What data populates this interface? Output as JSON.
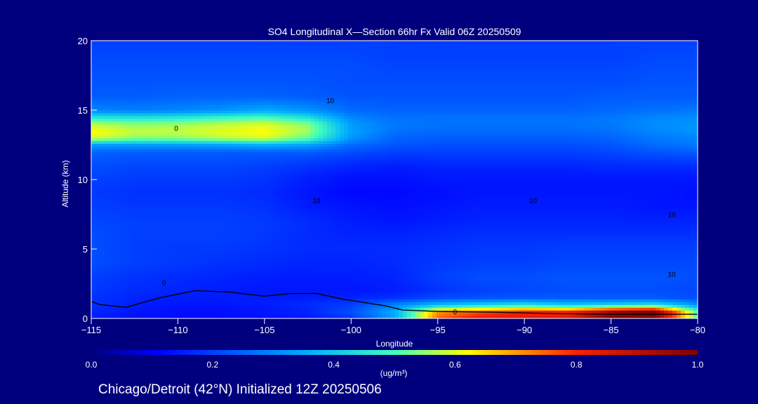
{
  "chart_data": {
    "type": "heatmap",
    "title": "SO4 Longitudinal X—Section 66hr  Fx Valid 06Z 20250509",
    "xlabel": "Longitude",
    "ylabel": "Altitude (km)",
    "xlim": [
      -115,
      -80
    ],
    "ylim": [
      0,
      20
    ],
    "x_ticks": [
      -115,
      -110,
      -105,
      -100,
      -95,
      -90,
      -85,
      -80
    ],
    "x_tick_labels": [
      "−115",
      "−110",
      "−105",
      "−100",
      "−95",
      "−90",
      "−85",
      "−80"
    ],
    "y_ticks": [
      0,
      5,
      10,
      15,
      20
    ],
    "y_tick_labels": [
      "0",
      "5",
      "10",
      "15",
      "20"
    ],
    "colorbar": {
      "label": "(ug/m³)",
      "range": [
        0.0,
        1.0
      ],
      "ticks": [
        0.0,
        0.2,
        0.4,
        0.6,
        0.8,
        1.0
      ],
      "tick_labels": [
        "0.0",
        "0.2",
        "0.4",
        "0.6",
        "0.8",
        "1.0"
      ],
      "colormap": "jet"
    },
    "field": {
      "lon": [
        -115,
        -112.5,
        -110,
        -107.5,
        -105,
        -102.5,
        -100,
        -97.5,
        -95,
        -92.5,
        -90,
        -87.5,
        -85,
        -82.5,
        -80
      ],
      "alt": [
        0,
        0.5,
        1,
        1.5,
        2,
        3,
        4,
        5,
        6,
        7,
        8,
        9,
        10,
        11,
        12,
        12.5,
        13,
        13.5,
        14,
        14.5,
        15,
        16,
        17,
        18,
        19,
        20
      ],
      "values": [
        [
          0.15,
          0.13,
          0.12,
          0.12,
          0.13,
          0.14,
          0.18,
          0.35,
          0.75,
          0.85,
          0.85,
          0.85,
          1.0,
          1.0,
          0.5
        ],
        [
          0.16,
          0.14,
          0.13,
          0.13,
          0.14,
          0.16,
          0.22,
          0.35,
          0.7,
          0.75,
          0.8,
          0.8,
          0.95,
          1.0,
          0.5
        ],
        [
          0.18,
          0.15,
          0.14,
          0.14,
          0.15,
          0.17,
          0.2,
          0.3,
          0.38,
          0.42,
          0.45,
          0.4,
          0.42,
          0.45,
          0.32
        ],
        [
          0.18,
          0.16,
          0.15,
          0.15,
          0.15,
          0.15,
          0.16,
          0.18,
          0.22,
          0.23,
          0.24,
          0.24,
          0.24,
          0.24,
          0.22
        ],
        [
          0.19,
          0.17,
          0.16,
          0.15,
          0.14,
          0.14,
          0.14,
          0.15,
          0.18,
          0.2,
          0.21,
          0.22,
          0.22,
          0.22,
          0.21
        ],
        [
          0.2,
          0.18,
          0.17,
          0.16,
          0.15,
          0.15,
          0.15,
          0.16,
          0.2,
          0.22,
          0.22,
          0.23,
          0.23,
          0.23,
          0.22
        ],
        [
          0.22,
          0.2,
          0.19,
          0.18,
          0.17,
          0.16,
          0.16,
          0.17,
          0.19,
          0.2,
          0.2,
          0.21,
          0.21,
          0.21,
          0.21
        ],
        [
          0.22,
          0.2,
          0.19,
          0.19,
          0.18,
          0.17,
          0.17,
          0.17,
          0.18,
          0.19,
          0.19,
          0.2,
          0.2,
          0.2,
          0.2
        ],
        [
          0.22,
          0.2,
          0.2,
          0.2,
          0.19,
          0.17,
          0.16,
          0.16,
          0.17,
          0.18,
          0.18,
          0.18,
          0.18,
          0.18,
          0.18
        ],
        [
          0.21,
          0.2,
          0.2,
          0.2,
          0.19,
          0.17,
          0.15,
          0.14,
          0.15,
          0.16,
          0.16,
          0.16,
          0.16,
          0.16,
          0.16
        ],
        [
          0.2,
          0.19,
          0.19,
          0.19,
          0.18,
          0.15,
          0.14,
          0.13,
          0.14,
          0.15,
          0.15,
          0.15,
          0.15,
          0.14,
          0.14
        ],
        [
          0.19,
          0.18,
          0.18,
          0.18,
          0.17,
          0.14,
          0.12,
          0.12,
          0.13,
          0.14,
          0.14,
          0.14,
          0.14,
          0.14,
          0.13
        ],
        [
          0.2,
          0.19,
          0.19,
          0.19,
          0.18,
          0.15,
          0.13,
          0.13,
          0.14,
          0.14,
          0.14,
          0.14,
          0.14,
          0.14,
          0.14
        ],
        [
          0.22,
          0.21,
          0.21,
          0.21,
          0.2,
          0.18,
          0.16,
          0.15,
          0.16,
          0.16,
          0.16,
          0.16,
          0.17,
          0.17,
          0.17
        ],
        [
          0.25,
          0.24,
          0.24,
          0.24,
          0.24,
          0.24,
          0.22,
          0.2,
          0.2,
          0.2,
          0.2,
          0.2,
          0.21,
          0.23,
          0.24
        ],
        [
          0.33,
          0.33,
          0.33,
          0.34,
          0.36,
          0.34,
          0.26,
          0.23,
          0.22,
          0.22,
          0.22,
          0.22,
          0.23,
          0.26,
          0.28
        ],
        [
          0.6,
          0.55,
          0.55,
          0.58,
          0.6,
          0.52,
          0.32,
          0.25,
          0.24,
          0.24,
          0.24,
          0.24,
          0.25,
          0.28,
          0.3
        ],
        [
          0.62,
          0.58,
          0.58,
          0.6,
          0.62,
          0.56,
          0.34,
          0.27,
          0.26,
          0.26,
          0.26,
          0.26,
          0.27,
          0.3,
          0.32
        ],
        [
          0.58,
          0.55,
          0.56,
          0.58,
          0.6,
          0.55,
          0.33,
          0.28,
          0.27,
          0.27,
          0.27,
          0.27,
          0.28,
          0.31,
          0.32
        ],
        [
          0.45,
          0.44,
          0.45,
          0.48,
          0.5,
          0.44,
          0.3,
          0.27,
          0.27,
          0.27,
          0.27,
          0.27,
          0.28,
          0.3,
          0.31
        ],
        [
          0.3,
          0.29,
          0.3,
          0.32,
          0.35,
          0.32,
          0.26,
          0.25,
          0.25,
          0.25,
          0.25,
          0.25,
          0.26,
          0.27,
          0.28
        ],
        [
          0.24,
          0.24,
          0.25,
          0.25,
          0.25,
          0.24,
          0.23,
          0.23,
          0.23,
          0.23,
          0.23,
          0.23,
          0.24,
          0.24,
          0.24
        ],
        [
          0.23,
          0.23,
          0.23,
          0.23,
          0.23,
          0.23,
          0.22,
          0.22,
          0.22,
          0.22,
          0.22,
          0.22,
          0.22,
          0.23,
          0.23
        ],
        [
          0.22,
          0.22,
          0.22,
          0.22,
          0.22,
          0.22,
          0.22,
          0.21,
          0.21,
          0.21,
          0.21,
          0.21,
          0.21,
          0.22,
          0.22
        ],
        [
          0.21,
          0.21,
          0.21,
          0.21,
          0.21,
          0.21,
          0.21,
          0.2,
          0.2,
          0.2,
          0.2,
          0.2,
          0.2,
          0.21,
          0.21
        ],
        [
          0.2,
          0.2,
          0.2,
          0.2,
          0.2,
          0.2,
          0.2,
          0.2,
          0.2,
          0.2,
          0.2,
          0.2,
          0.2,
          0.2,
          0.2
        ]
      ]
    },
    "terrain_line": {
      "lon": [
        -115,
        -114.5,
        -113,
        -111,
        -109,
        -107,
        -105,
        -103.5,
        -102,
        -100.5,
        -99,
        -98,
        -97,
        -95,
        -92,
        -90,
        -88,
        -85,
        -82,
        -80
      ],
      "alt": [
        1.2,
        1.0,
        0.8,
        1.5,
        2.0,
        1.9,
        1.6,
        1.8,
        1.8,
        1.4,
        1.1,
        0.9,
        0.6,
        0.5,
        0.45,
        0.4,
        0.35,
        0.3,
        0.3,
        0.3
      ]
    },
    "contour_labels": [
      {
        "text": "10",
        "lon": -101.2,
        "alt": 15.5
      },
      {
        "text": "0",
        "lon": -110.1,
        "alt": 13.5
      },
      {
        "text": "10",
        "lon": -102.0,
        "alt": 8.3
      },
      {
        "text": "10",
        "lon": -89.5,
        "alt": 8.3
      },
      {
        "text": "10",
        "lon": -81.5,
        "alt": 7.3
      },
      {
        "text": "10",
        "lon": -81.5,
        "alt": 3.0
      },
      {
        "text": "0",
        "lon": -110.8,
        "alt": 2.4
      },
      {
        "text": "0",
        "lon": -94.0,
        "alt": 0.3
      }
    ],
    "footer": "Chicago/Detroit (42°N) Initialized 12Z 20250506"
  }
}
